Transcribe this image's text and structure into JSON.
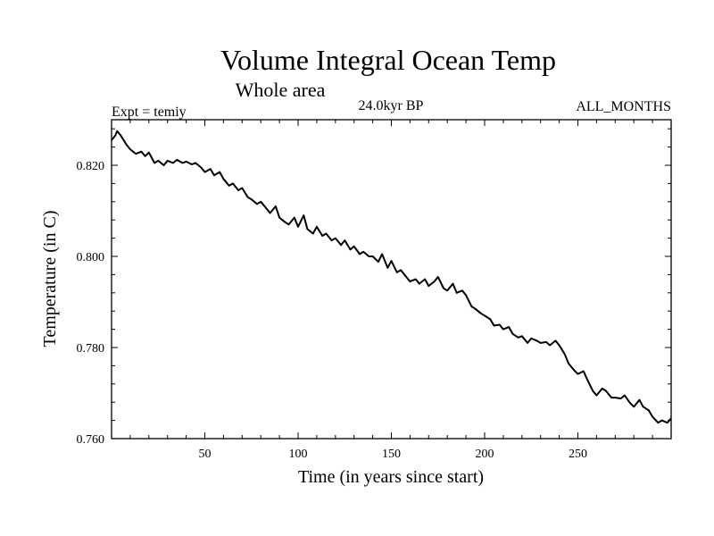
{
  "chart_data": {
    "type": "line",
    "title": "Volume Integral Ocean Temp",
    "subtitle": "Whole area",
    "experiment": "Expt = temiy",
    "period": "24.0kyr BP",
    "months": "ALL_MONTHS",
    "xlabel": "Time (in years since start)",
    "ylabel": "Temperature (in C)",
    "xlim": [
      0,
      300
    ],
    "ylim": [
      0.76,
      0.83
    ],
    "x_ticks": [
      50,
      100,
      150,
      200,
      250
    ],
    "x_tick_labels": [
      "50",
      "100",
      "150",
      "200",
      "250"
    ],
    "y_ticks": [
      0.76,
      0.78,
      0.8,
      0.82
    ],
    "y_tick_labels": [
      "0.760",
      "0.780",
      "0.800",
      "0.820"
    ],
    "grid": false,
    "series": [
      {
        "name": "temiy",
        "x": [
          0,
          2,
          3,
          5,
          8,
          10,
          13,
          16,
          18,
          20,
          23,
          25,
          28,
          30,
          33,
          35,
          38,
          40,
          43,
          45,
          48,
          50,
          53,
          55,
          58,
          60,
          63,
          65,
          68,
          70,
          73,
          75,
          78,
          80,
          83,
          85,
          88,
          90,
          93,
          95,
          98,
          100,
          103,
          105,
          108,
          110,
          113,
          115,
          118,
          120,
          123,
          125,
          128,
          130,
          133,
          135,
          138,
          140,
          143,
          145,
          148,
          150,
          153,
          155,
          158,
          160,
          163,
          165,
          168,
          170,
          173,
          175,
          178,
          180,
          183,
          185,
          188,
          190,
          193,
          195,
          198,
          200,
          203,
          205,
          208,
          210,
          213,
          215,
          218,
          220,
          223,
          225,
          228,
          230,
          233,
          235,
          238,
          240,
          243,
          245,
          248,
          250,
          253,
          255,
          258,
          260,
          263,
          265,
          268,
          270,
          273,
          275,
          278,
          280,
          283,
          285,
          288,
          290,
          293,
          295,
          298,
          300
        ],
        "values": [
          0.8255,
          0.8265,
          0.8275,
          0.8265,
          0.8245,
          0.8235,
          0.8225,
          0.823,
          0.822,
          0.8228,
          0.8205,
          0.821,
          0.82,
          0.821,
          0.8205,
          0.8212,
          0.8205,
          0.8208,
          0.8202,
          0.8205,
          0.8195,
          0.8185,
          0.8192,
          0.8178,
          0.8185,
          0.817,
          0.8155,
          0.816,
          0.8145,
          0.815,
          0.813,
          0.8125,
          0.8115,
          0.812,
          0.8105,
          0.8095,
          0.811,
          0.8085,
          0.8075,
          0.807,
          0.8085,
          0.8065,
          0.809,
          0.806,
          0.805,
          0.8065,
          0.8045,
          0.805,
          0.8035,
          0.804,
          0.8025,
          0.8035,
          0.8015,
          0.8022,
          0.8005,
          0.801,
          0.8,
          0.8,
          0.7988,
          0.8005,
          0.7975,
          0.799,
          0.7965,
          0.797,
          0.7955,
          0.7945,
          0.795,
          0.794,
          0.795,
          0.7935,
          0.7945,
          0.7955,
          0.793,
          0.7925,
          0.794,
          0.792,
          0.7925,
          0.7915,
          0.789,
          0.7885,
          0.7875,
          0.787,
          0.7862,
          0.7848,
          0.785,
          0.784,
          0.7845,
          0.783,
          0.7822,
          0.7825,
          0.781,
          0.782,
          0.7815,
          0.781,
          0.7812,
          0.7805,
          0.7815,
          0.7805,
          0.7785,
          0.7765,
          0.775,
          0.7742,
          0.7748,
          0.773,
          0.7705,
          0.7695,
          0.771,
          0.7705,
          0.769,
          0.769,
          0.7688,
          0.7695,
          0.7678,
          0.767,
          0.7685,
          0.767,
          0.7662,
          0.7648,
          0.7635,
          0.764,
          0.7635,
          0.7645
        ]
      }
    ]
  }
}
